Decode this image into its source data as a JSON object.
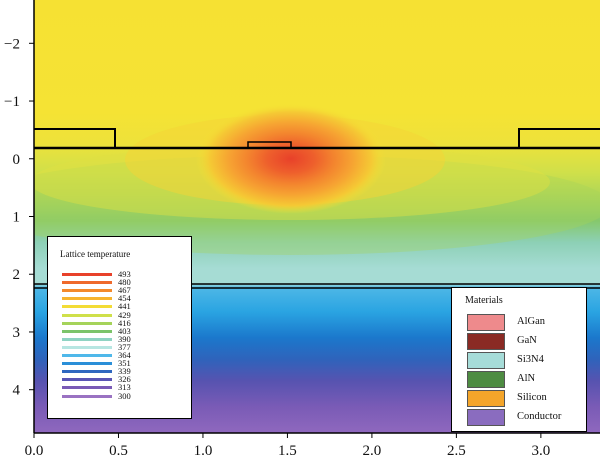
{
  "chart_data": {
    "type": "heatmap",
    "title": "",
    "xlabel": "",
    "ylabel": "",
    "xlim": [
      0,
      3.35
    ],
    "ylim": [
      4.75,
      -2.75
    ],
    "y_inverted": true,
    "x_ticks": [
      "0.0",
      "0.5",
      "1.0",
      "1.5",
      "2.0",
      "2.5",
      "3.0"
    ],
    "y_ticks": [
      "−2",
      "−1",
      "0",
      "1",
      "2",
      "3",
      "4"
    ],
    "x_tick_values": [
      0,
      0.5,
      1.0,
      1.5,
      2.0,
      2.5,
      3.0
    ],
    "y_tick_values": [
      -2,
      -1,
      0,
      1,
      2,
      3,
      4
    ],
    "hotspot": {
      "x": 1.52,
      "y": 0,
      "max_temperature": 493
    },
    "legend_temperature": {
      "title": "Lattice temperature",
      "levels": [
        "493",
        "480",
        "467",
        "454",
        "441",
        "429",
        "416",
        "403",
        "390",
        "377",
        "364",
        "351",
        "339",
        "326",
        "313",
        "300"
      ],
      "colors": [
        "#e8412a",
        "#ef6a2c",
        "#f48a2c",
        "#f7b42e",
        "#f3dc35",
        "#cfe04a",
        "#a5d35a",
        "#7cc46a",
        "#8fd3c3",
        "#b7e6e2",
        "#4fb8ea",
        "#2a8fd8",
        "#2f67c0",
        "#5a55b5",
        "#7a5bb6",
        "#9a72c2"
      ]
    },
    "legend_materials": {
      "title": "Materials",
      "items": [
        {
          "label": "AlGan",
          "color": "#ee8a8c"
        },
        {
          "label": "GaN",
          "color": "#8a2a24"
        },
        {
          "label": "Si3N4",
          "color": "#a6dcd8"
        },
        {
          "label": "AlN",
          "color": "#4e8c42"
        },
        {
          "label": "Silicon",
          "color": "#f4a52a"
        },
        {
          "label": "Conductor",
          "color": "#8a6cbf"
        }
      ]
    }
  }
}
